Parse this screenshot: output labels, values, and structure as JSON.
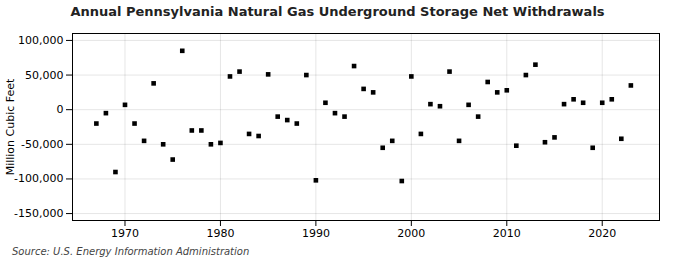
{
  "chart_data": {
    "type": "scatter",
    "title": "Annual Pennsylvania Natural Gas Underground Storage Net Withdrawals",
    "ylabel": "Million Cubic Feet",
    "source": "Source: U.S. Energy Information Administration",
    "marker": "square",
    "grid": true,
    "xlim": [
      1964.5,
      2026
    ],
    "xticks": [
      1970,
      1980,
      1990,
      2000,
      2010,
      2020
    ],
    "ylim": [
      -160000,
      110000
    ],
    "yticks": [
      {
        "value": -150000,
        "label": "-150,000"
      },
      {
        "value": -100000,
        "label": "-100,000"
      },
      {
        "value": -50000,
        "label": "-50,000"
      },
      0,
      {
        "value": 50000,
        "label": "50,000"
      },
      {
        "value": 100000,
        "label": "100,000"
      }
    ],
    "x": [
      1967,
      1968,
      1969,
      1970,
      1971,
      1972,
      1973,
      1974,
      1975,
      1976,
      1977,
      1978,
      1979,
      1980,
      1981,
      1982,
      1983,
      1984,
      1985,
      1986,
      1987,
      1988,
      1989,
      1990,
      1991,
      1992,
      1993,
      1994,
      1995,
      1996,
      1997,
      1998,
      1999,
      2000,
      2001,
      2002,
      2003,
      2004,
      2005,
      2006,
      2007,
      2008,
      2009,
      2010,
      2011,
      2012,
      2013,
      2014,
      2015,
      2016,
      2017,
      2018,
      2019,
      2020,
      2021,
      2022,
      2023
    ],
    "values": [
      -20000,
      -5000,
      -90000,
      7000,
      -20000,
      -45000,
      38000,
      -50000,
      -72000,
      85000,
      -30000,
      -30000,
      -50000,
      -48000,
      48000,
      55000,
      -35000,
      -38000,
      51000,
      -10000,
      -15000,
      -20000,
      50000,
      -102000,
      10000,
      -5000,
      -10000,
      63000,
      30000,
      25000,
      -55000,
      -45000,
      -103000,
      48000,
      -35000,
      8000,
      5000,
      55000,
      -45000,
      7000,
      -10000,
      40000,
      25000,
      28000,
      -52000,
      50000,
      65000,
      -47000,
      -40000,
      8000,
      15000,
      10000,
      -55000,
      10000,
      15000,
      -42000,
      35000
    ]
  }
}
